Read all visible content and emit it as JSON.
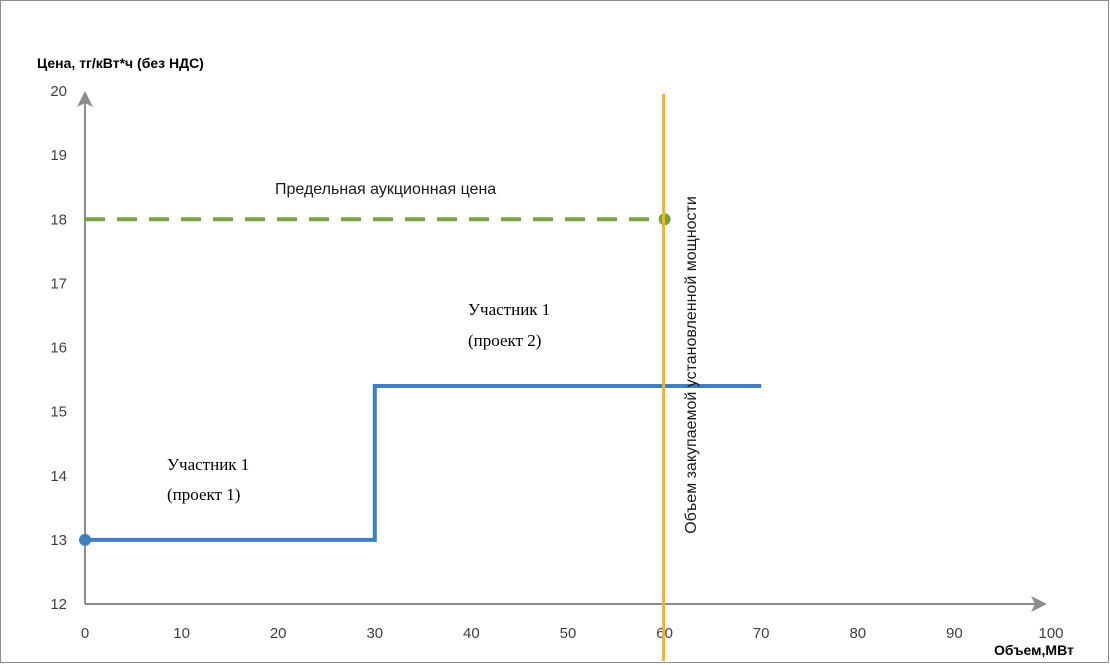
{
  "chart_data": {
    "type": "line",
    "ylabel": "Цена, тг/кВт*ч (без НДС)",
    "xlabel": "Объем,МВт",
    "xlim": [
      0,
      100
    ],
    "ylim": [
      12,
      20
    ],
    "xticks": [
      0,
      10,
      20,
      30,
      40,
      50,
      60,
      70,
      80,
      90,
      100
    ],
    "yticks": [
      12,
      13,
      14,
      15,
      16,
      17,
      18,
      19,
      20
    ],
    "grid": false,
    "series": [
      {
        "style": "solid-step",
        "color": "#3f7fc4",
        "points": [
          [
            0,
            13
          ],
          [
            30,
            13
          ],
          [
            30,
            15.4
          ],
          [
            70,
            15.4
          ]
        ]
      },
      {
        "style": "dashed",
        "color": "#77a342",
        "points": [
          [
            0,
            18
          ],
          [
            60,
            18
          ]
        ]
      }
    ],
    "vertical_line": {
      "x": 60,
      "color": "#f4b41a",
      "label": "Объем закупаемой установленной мощности"
    },
    "annotations": {
      "limit_price": "Предельная аукционная цена",
      "p2_line1": "Участник 1",
      "p2_line2": "(проект 2)",
      "p1_line1": "Участник 1",
      "p1_line2": "(проект 1)"
    }
  }
}
